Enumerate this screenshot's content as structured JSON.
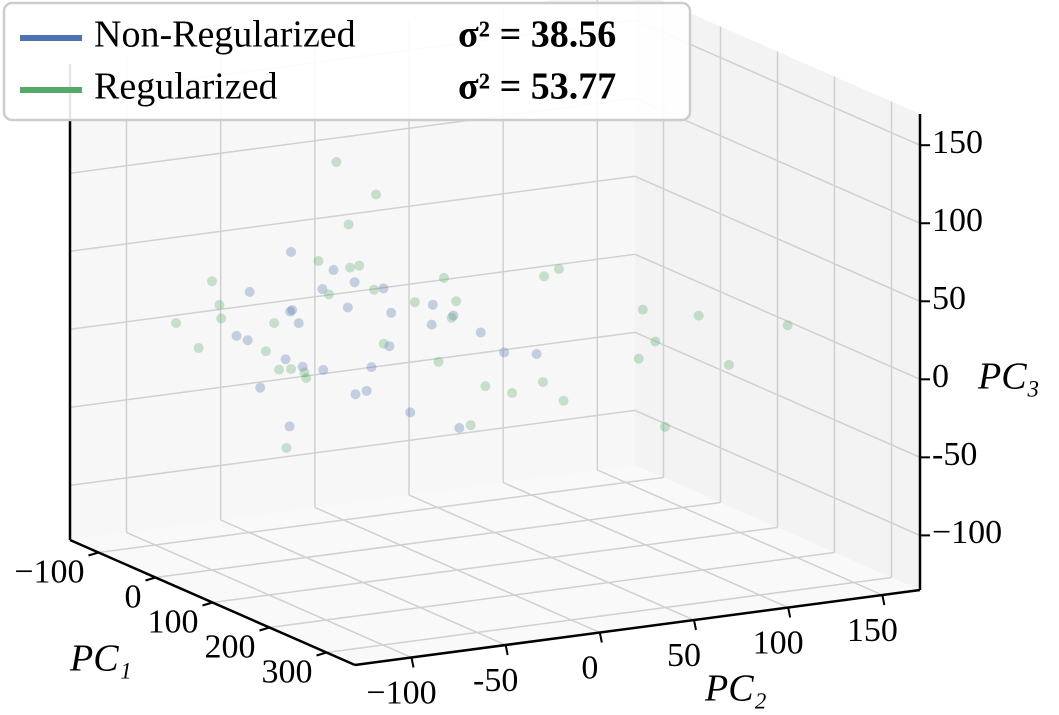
{
  "chart_data": {
    "type": "scatter3d",
    "xlabel": "PC₁",
    "ylabel": "PC₂",
    "zlabel": "PC₃",
    "xlim": [
      -150,
      350
    ],
    "ylim": [
      -130,
      170
    ],
    "zlim": [
      -135,
      170
    ],
    "xticks": [
      {
        "value": -100,
        "label": "−100"
      },
      0,
      100,
      200,
      300
    ],
    "yticks": [
      {
        "value": -100,
        "label": "−100"
      },
      {
        "value": -50,
        "label": "-50"
      },
      0,
      50,
      100,
      150
    ],
    "zticks": [
      {
        "value": -100,
        "label": "−100"
      },
      {
        "value": -50,
        "label": "-50"
      },
      0,
      50,
      100,
      150
    ],
    "grid": true,
    "legend": "upper left",
    "series": [
      {
        "name": "Non-Regularized",
        "variance_label": "σ² = 38.56",
        "color": "#4c72b0",
        "x": [
          20,
          40,
          60,
          0,
          80,
          30,
          50,
          10,
          70,
          90,
          -20,
          45,
          65,
          25,
          55,
          100,
          35,
          15,
          75,
          5,
          120,
          85,
          40,
          60,
          30,
          -10,
          50,
          140,
          20,
          70
        ],
        "y": [
          -60,
          -40,
          -70,
          -80,
          -30,
          -50,
          -20,
          -90,
          -45,
          -10,
          -75,
          -55,
          -35,
          -65,
          0,
          -25,
          -85,
          -40,
          20,
          -60,
          -5,
          -50,
          -30,
          10,
          -70,
          -55,
          40,
          30,
          -15,
          -80
        ],
        "z": [
          20,
          30,
          0,
          40,
          10,
          -10,
          25,
          15,
          -20,
          35,
          5,
          45,
          -5,
          30,
          15,
          -30,
          -15,
          50,
          10,
          25,
          -40,
          55,
          -25,
          20,
          0,
          60,
          -10,
          5,
          35,
          -35
        ]
      },
      {
        "name": "Regularized",
        "variance_label": "σ² = 53.77",
        "color": "#55a868",
        "x": [
          -20,
          10,
          40,
          70,
          100,
          0,
          30,
          60,
          90,
          130,
          -50,
          20,
          50,
          80,
          150,
          -30,
          200,
          110,
          35,
          65,
          5,
          45,
          -10,
          85,
          160,
          25,
          55,
          120,
          -40,
          75,
          15,
          95,
          180,
          250,
          40,
          0,
          60,
          140,
          20,
          220
        ],
        "y": [
          -90,
          -70,
          -50,
          -30,
          -10,
          -100,
          -60,
          -40,
          0,
          20,
          -80,
          -20,
          30,
          60,
          90,
          -110,
          80,
          -60,
          -75,
          10,
          -45,
          -85,
          -55,
          50,
          110,
          -35,
          70,
          40,
          -95,
          -15,
          -65,
          100,
          120,
          130,
          -25,
          -50,
          5,
          -5,
          -40,
          60
        ],
        "z": [
          30,
          20,
          40,
          10,
          0,
          50,
          -10,
          60,
          25,
          -20,
          15,
          35,
          -30,
          45,
          5,
          20,
          -40,
          70,
          -5,
          30,
          55,
          10,
          -15,
          -25,
          20,
          80,
          -45,
          50,
          0,
          35,
          -60,
          15,
          -10,
          25,
          100,
          -20,
          45,
          -35,
          120,
          10
        ]
      }
    ]
  }
}
